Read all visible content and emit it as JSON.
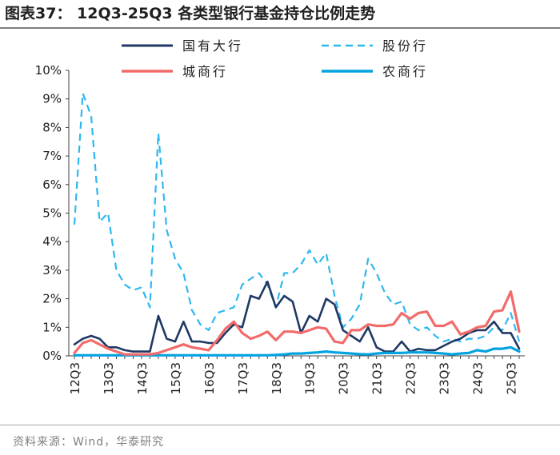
{
  "title": "图表37：  12Q3-25Q3 各类型银行基金持仓比例走势",
  "source": "资料来源：Wind，华泰研究",
  "chart_data": {
    "type": "line",
    "title": "12Q3-25Q3 各类型银行基金持仓比例走势",
    "xlabel": "",
    "ylabel": "",
    "ylim": [
      0,
      10
    ],
    "y_tick_labels": [
      "0%",
      "1%",
      "2%",
      "3%",
      "4%",
      "5%",
      "6%",
      "7%",
      "8%",
      "9%",
      "10%"
    ],
    "x_tick_labels": [
      "12Q3",
      "13Q3",
      "14Q3",
      "15Q3",
      "16Q3",
      "17Q3",
      "18Q3",
      "19Q3",
      "20Q3",
      "21Q3",
      "22Q3",
      "23Q3",
      "24Q3",
      "25Q3"
    ],
    "grid": false,
    "legend": "top",
    "series": [
      {
        "name": "国有大行",
        "color": "#1f3864",
        "dash": "solid",
        "values": [
          0.4,
          0.6,
          0.7,
          0.6,
          0.3,
          0.3,
          0.2,
          0.15,
          0.15,
          0.15,
          1.4,
          0.6,
          0.5,
          1.2,
          0.5,
          0.5,
          0.45,
          0.45,
          0.8,
          1.1,
          1.0,
          2.1,
          2.0,
          2.6,
          1.7,
          2.1,
          1.9,
          0.8,
          1.4,
          1.2,
          2.0,
          1.8,
          0.9,
          0.7,
          0.5,
          1.0,
          0.3,
          0.15,
          0.15,
          0.5,
          0.15,
          0.25,
          0.2,
          0.2,
          0.35,
          0.5,
          0.6,
          0.8,
          0.9,
          0.9,
          1.2,
          0.8,
          0.8,
          0.25
        ]
      },
      {
        "name": "股份行",
        "color": "#2eb8f0",
        "dash": "dashed",
        "values": [
          4.6,
          9.2,
          8.4,
          4.7,
          5.0,
          3.0,
          2.5,
          2.3,
          2.4,
          1.7,
          7.8,
          4.4,
          3.4,
          2.9,
          1.6,
          1.1,
          0.9,
          1.5,
          1.6,
          1.7,
          2.5,
          2.7,
          2.9,
          2.5,
          1.7,
          2.9,
          2.9,
          3.2,
          3.7,
          3.2,
          3.6,
          2.1,
          1.0,
          1.3,
          1.8,
          3.4,
          2.9,
          2.2,
          1.8,
          1.9,
          1.1,
          0.9,
          1.0,
          0.7,
          0.5,
          0.6,
          0.5,
          0.6,
          0.6,
          0.7,
          1.0,
          0.9,
          1.5,
          0.5
        ]
      },
      {
        "name": "城商行",
        "color": "#f26b6b",
        "dash": "solid",
        "values": [
          0.1,
          0.45,
          0.55,
          0.4,
          0.25,
          0.15,
          0.05,
          0.05,
          0.05,
          0.05,
          0.1,
          0.2,
          0.3,
          0.4,
          0.3,
          0.25,
          0.2,
          0.55,
          0.95,
          1.2,
          0.8,
          0.6,
          0.7,
          0.85,
          0.55,
          0.85,
          0.85,
          0.8,
          0.9,
          1.0,
          0.95,
          0.5,
          0.45,
          0.9,
          0.9,
          1.1,
          1.05,
          1.05,
          1.1,
          1.5,
          1.3,
          1.5,
          1.55,
          1.05,
          1.05,
          1.2,
          0.75,
          0.85,
          1.0,
          1.05,
          1.55,
          1.6,
          2.25,
          0.85
        ]
      },
      {
        "name": "农商行",
        "color": "#00a3e0",
        "dash": "solid",
        "values": [
          0.02,
          0.02,
          0.02,
          0.02,
          0.02,
          0.02,
          0.02,
          0.02,
          0.02,
          0.02,
          0.02,
          0.02,
          0.02,
          0.02,
          0.02,
          0.02,
          0.02,
          0.02,
          0.02,
          0.02,
          0.02,
          0.02,
          0.02,
          0.02,
          0.03,
          0.05,
          0.08,
          0.08,
          0.1,
          0.12,
          0.15,
          0.12,
          0.1,
          0.08,
          0.06,
          0.05,
          0.08,
          0.1,
          0.1,
          0.1,
          0.12,
          0.12,
          0.12,
          0.1,
          0.08,
          0.05,
          0.08,
          0.1,
          0.2,
          0.15,
          0.25,
          0.25,
          0.3,
          0.15
        ]
      }
    ]
  }
}
